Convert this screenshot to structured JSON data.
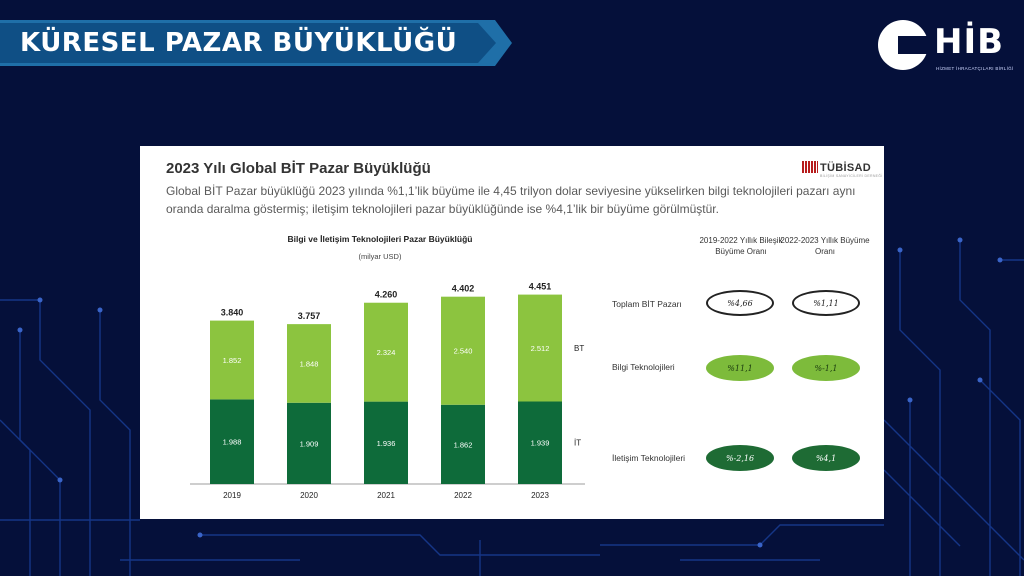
{
  "slide": {
    "title": "KÜRESEL PAZAR BÜYÜKLÜĞÜ",
    "logo": {
      "text": "HİB",
      "subtitle": "HİZMET İHRACATÇILARI BİRLİĞİ",
      "icon": "hib-logo-icon"
    },
    "colors": {
      "background": "#05103a",
      "banner": "#0f4f85",
      "it_bar": "#0e6b3a",
      "bt_bar": "#7dbb3b"
    }
  },
  "panel": {
    "title": "2023 Yılı Global BİT Pazar Büyüklüğü",
    "description": "Global BİT Pazar büyüklüğü 2023 yılında %1,1’lik büyüme ile 4,45 trilyon dolar seviyesine yükselirken bilgi teknolojileri pazarı aynı oranda daralma göstermiş; iletişim teknolojileri pazar büyüklüğünde ise %4,1’lik bir büyüme görülmüştür.",
    "brand": "TÜBİSAD",
    "brand_sub": "BİLİŞİM SANAYİCİLERİ DERNEĞİ"
  },
  "chart_data": {
    "type": "bar",
    "stacked": true,
    "title": "Bilgi ve İletişim Teknolojileri Pazar Büyüklüğü",
    "subtitle": "(milyar USD)",
    "categories": [
      "2019",
      "2020",
      "2021",
      "2022",
      "2023"
    ],
    "series": [
      {
        "name": "İT",
        "values": [
          1.988,
          1.909,
          1.936,
          1.862,
          1.939
        ],
        "color": "#0e6b3a"
      },
      {
        "name": "BT",
        "values": [
          1.852,
          1.848,
          2.324,
          2.54,
          2.512
        ],
        "color": "#8cc43f"
      }
    ],
    "totals": [
      3.84,
      3.757,
      4.26,
      4.402,
      4.451
    ],
    "value_labels": {
      "it": [
        "1.988",
        "1.909",
        "1.936",
        "1.862",
        "1.939"
      ],
      "bt": [
        "1.852",
        "1.848",
        "2.324",
        "2.540",
        "2.512"
      ],
      "totals": [
        "3.840",
        "3.757",
        "4.260",
        "4.402",
        "4.451"
      ]
    },
    "ylim": [
      0,
      4.7
    ],
    "grid": false,
    "legend": "right"
  },
  "growth_table": {
    "col1": "2019-2022 Yıllık Bileşik Büyüme Oranı",
    "col2": "2022-2023 Yıllık Büyüme Oranı",
    "rows": [
      {
        "label": "Toplam BİT Pazarı",
        "v1": "%4,66",
        "v2": "%1,11"
      },
      {
        "label": "Bilgi Teknolojileri",
        "v1": "%11,1",
        "v2": "%-1,1"
      },
      {
        "label": "İletişim Teknolojileri",
        "v1": "%-2,16",
        "v2": "%4,1"
      }
    ]
  }
}
